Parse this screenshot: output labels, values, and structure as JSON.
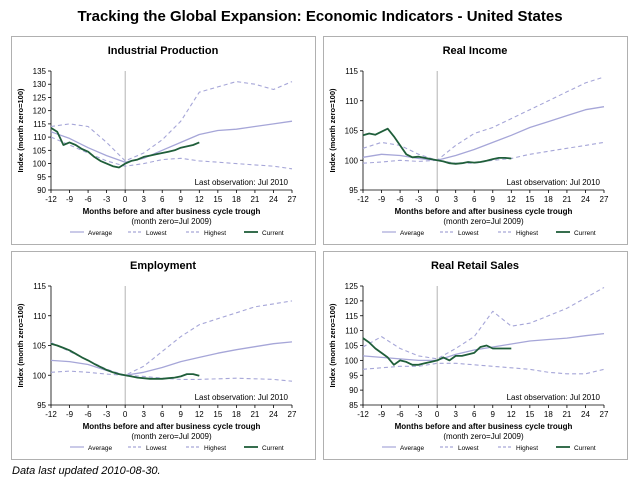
{
  "title": "Tracking the Global Expansion: Economic Indicators - United States",
  "footer_note": "Data last updated 2010-08-30.",
  "colors": {
    "average": "#a6a6d8",
    "lowest": "#a6a6d8",
    "highest": "#a6a6d8",
    "current": "#1f5e3a",
    "axis": "#000000",
    "trough_line": "#a0a0a0"
  },
  "chart_data": [
    {
      "type": "line",
      "title": "Industrial Production",
      "xlabel": "Months before and after business cycle trough",
      "xlabel_sub": "(month zero=Jul 2009)",
      "ylabel": "Index (month zero=100)",
      "annotation": "Last observation: Jul 2010",
      "xlim": [
        -12,
        27
      ],
      "ylim": [
        90,
        135
      ],
      "xticks": [
        -12,
        -9,
        -6,
        -3,
        0,
        3,
        6,
        9,
        12,
        15,
        18,
        21,
        24,
        27
      ],
      "yticks": [
        90,
        95,
        100,
        105,
        110,
        115,
        120,
        125,
        130,
        135
      ],
      "legend": [
        "Average",
        "Lowest",
        "Highest",
        "Current"
      ],
      "series": {
        "average": {
          "x": [
            -12,
            -9,
            -6,
            -3,
            0,
            3,
            6,
            9,
            12,
            15,
            18,
            21,
            24,
            27
          ],
          "y": [
            112,
            109.5,
            106,
            103,
            100.5,
            102,
            105,
            108,
            111,
            112.5,
            113,
            114,
            115,
            116
          ]
        },
        "lowest": {
          "x": [
            -12,
            -9,
            -6,
            -3,
            0,
            3,
            6,
            9,
            12,
            15,
            18,
            21,
            24,
            27
          ],
          "y": [
            110,
            107,
            104,
            101,
            99,
            100,
            101.5,
            102,
            101,
            100.5,
            100,
            99.5,
            99,
            98
          ]
        },
        "highest": {
          "x": [
            -12,
            -9,
            -6,
            -3,
            0,
            3,
            6,
            9,
            12,
            15,
            18,
            21,
            24,
            27
          ],
          "y": [
            114,
            115,
            114,
            108,
            101,
            104,
            109,
            116,
            127,
            129,
            131,
            130,
            128,
            131
          ]
        },
        "current": {
          "x": [
            -12,
            -11,
            -10,
            -9,
            -8,
            -7,
            -6,
            -5,
            -4,
            -3,
            -2,
            -1,
            0,
            1,
            2,
            3,
            4,
            5,
            6,
            7,
            8,
            9,
            10,
            11,
            12
          ],
          "y": [
            113.5,
            112,
            107,
            108,
            107,
            105.5,
            104.5,
            102.5,
            101,
            100,
            99,
            98.5,
            100,
            101,
            101.5,
            102.5,
            103,
            103.5,
            104,
            104.5,
            105,
            106,
            106.5,
            107,
            108
          ]
        }
      }
    },
    {
      "type": "line",
      "title": "Real Income",
      "xlabel": "Months before and after business cycle trough",
      "xlabel_sub": "(month zero=Jul 2009)",
      "ylabel": "Index (month zero=100)",
      "annotation": "Last observation: Jul 2010",
      "xlim": [
        -12,
        27
      ],
      "ylim": [
        95,
        115
      ],
      "xticks": [
        -12,
        -9,
        -6,
        -3,
        0,
        3,
        6,
        9,
        12,
        15,
        18,
        21,
        24,
        27
      ],
      "yticks": [
        95,
        100,
        105,
        110,
        115
      ],
      "legend": [
        "Average",
        "Lowest",
        "Highest",
        "Current"
      ],
      "series": {
        "average": {
          "x": [
            -12,
            -9,
            -6,
            -3,
            0,
            3,
            6,
            9,
            12,
            15,
            18,
            21,
            24,
            27
          ],
          "y": [
            100.5,
            101,
            100.8,
            100.3,
            100,
            100.8,
            101.8,
            103,
            104.2,
            105.5,
            106.5,
            107.5,
            108.5,
            109
          ]
        },
        "lowest": {
          "x": [
            -12,
            -9,
            -6,
            -3,
            0,
            3,
            6,
            9,
            12,
            15,
            18,
            21,
            24,
            27
          ],
          "y": [
            99.5,
            99.7,
            100,
            99.8,
            100,
            99.5,
            99.5,
            100,
            100.3,
            101,
            101.5,
            102,
            102.5,
            103
          ]
        },
        "highest": {
          "x": [
            -12,
            -9,
            -6,
            -3,
            0,
            3,
            6,
            9,
            12,
            15,
            18,
            21,
            24,
            27
          ],
          "y": [
            102,
            103,
            102.5,
            101,
            100,
            102.5,
            104.5,
            105.5,
            107,
            108.5,
            110,
            111.5,
            113,
            114
          ]
        },
        "current": {
          "x": [
            -12,
            -11,
            -10,
            -9,
            -8,
            -7,
            -6,
            -5,
            -4,
            -3,
            -2,
            -1,
            0,
            1,
            2,
            3,
            4,
            5,
            6,
            7,
            8,
            9,
            10,
            11,
            12
          ],
          "y": [
            104.2,
            104.5,
            104.3,
            104.8,
            105.3,
            104,
            102.5,
            101,
            100.5,
            100.6,
            100.4,
            100.2,
            100,
            99.8,
            99.5,
            99.4,
            99.5,
            99.7,
            99.6,
            99.7,
            99.9,
            100.2,
            100.4,
            100.4,
            100.3
          ]
        }
      }
    },
    {
      "type": "line",
      "title": "Employment",
      "xlabel": "Months before and after business cycle trough",
      "xlabel_sub": "(month zero=Jul 2009)",
      "ylabel": "Index (month zero=100)",
      "annotation": "Last observation: Jul 2010",
      "xlim": [
        -12,
        27
      ],
      "ylim": [
        95,
        115
      ],
      "xticks": [
        -12,
        -9,
        -6,
        -3,
        0,
        3,
        6,
        9,
        12,
        15,
        18,
        21,
        24,
        27
      ],
      "yticks": [
        95,
        100,
        105,
        110,
        115
      ],
      "legend": [
        "Average",
        "Lowest",
        "Highest",
        "Current"
      ],
      "series": {
        "average": {
          "x": [
            -12,
            -9,
            -6,
            -3,
            0,
            3,
            6,
            9,
            12,
            15,
            18,
            21,
            24,
            27
          ],
          "y": [
            102.5,
            102.3,
            101.8,
            100.8,
            100,
            100.5,
            101.3,
            102.3,
            103,
            103.7,
            104.3,
            104.8,
            105.3,
            105.6
          ]
        },
        "lowest": {
          "x": [
            -12,
            -9,
            -6,
            -3,
            0,
            3,
            6,
            9,
            12,
            15,
            18,
            21,
            24,
            27
          ],
          "y": [
            100.5,
            100.7,
            100.5,
            100.2,
            100,
            99.8,
            99.5,
            99.3,
            99.3,
            99.4,
            99.5,
            99.4,
            99.3,
            99
          ]
        },
        "highest": {
          "x": [
            -12,
            -9,
            -6,
            -3,
            0,
            3,
            6,
            9,
            12,
            15,
            18,
            21,
            24,
            27
          ],
          "y": [
            105.5,
            104,
            102.5,
            101,
            100,
            101.5,
            104,
            106.5,
            108.5,
            109.5,
            110.5,
            111.5,
            112,
            112.5
          ]
        },
        "current": {
          "x": [
            -12,
            -11,
            -10,
            -9,
            -8,
            -7,
            -6,
            -5,
            -4,
            -3,
            -2,
            -1,
            0,
            1,
            2,
            3,
            4,
            5,
            6,
            7,
            8,
            9,
            10,
            11,
            12
          ],
          "y": [
            105.3,
            105,
            104.6,
            104.2,
            103.6,
            103,
            102.5,
            101.9,
            101.4,
            100.9,
            100.5,
            100.2,
            100,
            99.8,
            99.6,
            99.5,
            99.4,
            99.4,
            99.4,
            99.5,
            99.6,
            99.8,
            100.2,
            100.2,
            99.9
          ]
        }
      }
    },
    {
      "type": "line",
      "title": "Real Retail Sales",
      "xlabel": "Months before and after business cycle trough",
      "xlabel_sub": "(month zero=Jul 2009)",
      "ylabel": "Index (month zero=100)",
      "annotation": "Last observation: Jul 2010",
      "xlim": [
        -12,
        27
      ],
      "ylim": [
        85,
        125
      ],
      "xticks": [
        -12,
        -9,
        -6,
        -3,
        0,
        3,
        6,
        9,
        12,
        15,
        18,
        21,
        24,
        27
      ],
      "yticks": [
        85,
        90,
        95,
        100,
        105,
        110,
        115,
        120,
        125
      ],
      "legend": [
        "Average",
        "Lowest",
        "Highest",
        "Current"
      ],
      "series": {
        "average": {
          "x": [
            -12,
            -9,
            -6,
            -3,
            0,
            3,
            6,
            9,
            12,
            15,
            18,
            21,
            24,
            27
          ],
          "y": [
            101.5,
            101,
            100.5,
            100,
            100,
            102,
            103.5,
            104.5,
            105.5,
            106.5,
            107,
            107.5,
            108.3,
            109
          ]
        },
        "lowest": {
          "x": [
            -12,
            -9,
            -6,
            -3,
            0,
            3,
            6,
            9,
            12,
            15,
            18,
            21,
            24,
            27
          ],
          "y": [
            97,
            97.5,
            98,
            98,
            99,
            99,
            98.5,
            98,
            97.5,
            97,
            96,
            95.5,
            95.5,
            97
          ]
        },
        "highest": {
          "x": [
            -12,
            -9,
            -6,
            -3,
            0,
            3,
            6,
            9,
            12,
            15,
            18,
            21,
            24,
            27
          ],
          "y": [
            104.5,
            108,
            104,
            101.5,
            100.5,
            104,
            108,
            116.5,
            111.5,
            112.5,
            115,
            117.5,
            121,
            124.5
          ]
        },
        "current": {
          "x": [
            -12,
            -11,
            -10,
            -9,
            -8,
            -7,
            -6,
            -5,
            -4,
            -3,
            -2,
            -1,
            0,
            1,
            2,
            3,
            4,
            5,
            6,
            7,
            8,
            9,
            10,
            11,
            12
          ],
          "y": [
            107.5,
            106,
            104,
            102.5,
            101,
            98.5,
            100,
            99.5,
            98.5,
            98.5,
            99,
            99.5,
            100,
            101,
            100,
            101.5,
            101.5,
            102,
            102.5,
            104.5,
            105,
            104,
            104,
            104,
            104
          ]
        }
      }
    }
  ]
}
